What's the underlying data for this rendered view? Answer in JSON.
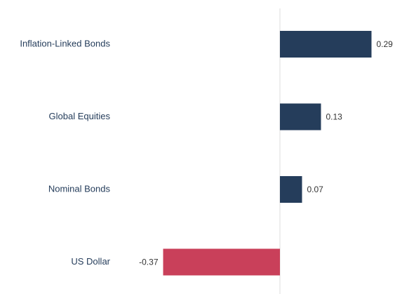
{
  "chart_data": {
    "type": "barh",
    "categories": [
      "Inflation-Linked Bonds",
      "Global Equities",
      "Nominal Bonds",
      "US Dollar"
    ],
    "values": [
      0.29,
      0.13,
      0.07,
      -0.37
    ],
    "colors": [
      "#253d5b",
      "#253d5b",
      "#253d5b",
      "#c9405a"
    ],
    "xlim": [
      -0.5,
      0.35
    ]
  }
}
